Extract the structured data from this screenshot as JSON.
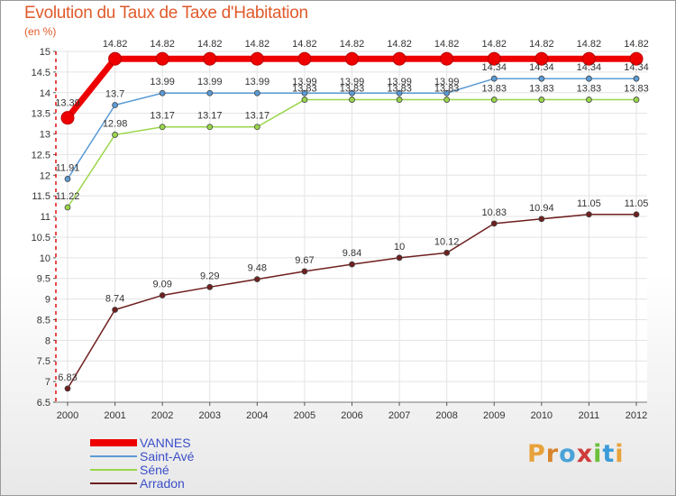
{
  "title": "Evolution du Taux de Taxe d'Habitation",
  "unit": "(en %)",
  "brand": {
    "letters": [
      "P",
      "r",
      "o",
      "x",
      "i",
      "t",
      "i"
    ],
    "colors": [
      "#e8a23a",
      "#d8842c",
      "#4aa3d8",
      "#cf3b3b",
      "#6cc03a",
      "#3a9bd8",
      "#e8a23a"
    ]
  },
  "chart_data": {
    "type": "line",
    "title": "Evolution du Taux de Taxe d'Habitation",
    "ylabel": "(en %)",
    "xlabel": "",
    "x": [
      2000,
      2001,
      2002,
      2003,
      2004,
      2005,
      2006,
      2007,
      2008,
      2009,
      2010,
      2011,
      2012
    ],
    "ylim": [
      6.5,
      15
    ],
    "yticks": [
      "6.5",
      "7",
      "7.5",
      "8",
      "8.5",
      "9",
      "9.5",
      "10",
      "10.5",
      "11",
      "11.5",
      "12",
      "12.5",
      "13",
      "13.5",
      "14",
      "14.5",
      "15"
    ],
    "series": [
      {
        "name": "VANNES",
        "color": "#ee0000",
        "width": 7,
        "marker": 7,
        "values": [
          13.39,
          14.82,
          14.82,
          14.82,
          14.82,
          14.82,
          14.82,
          14.82,
          14.82,
          14.82,
          14.82,
          14.82,
          14.82
        ],
        "labels": [
          "13.39",
          "14.82",
          "14.82",
          "14.82",
          "14.82",
          "14.82",
          "14.82",
          "14.82",
          "14.82",
          "14.82",
          "14.82",
          "14.82",
          "14.82"
        ]
      },
      {
        "name": "Saint-Avé",
        "color": "#5b9bd5",
        "width": 1.5,
        "marker": 3,
        "values": [
          11.91,
          13.7,
          13.99,
          13.99,
          13.99,
          13.99,
          13.99,
          13.99,
          13.99,
          14.34,
          14.34,
          14.34,
          14.34
        ],
        "labels": [
          "11.91",
          "13.7",
          "13.99",
          "13.99",
          "13.99",
          "13.99",
          "13.99",
          "13.99",
          "13.99",
          "14.34",
          "14.34",
          "14.34",
          "14.34"
        ]
      },
      {
        "name": "Séné",
        "color": "#99d64a",
        "width": 1.5,
        "marker": 3,
        "values": [
          11.22,
          12.98,
          13.17,
          13.17,
          13.17,
          13.83,
          13.83,
          13.83,
          13.83,
          13.83,
          13.83,
          13.83,
          13.83
        ],
        "labels": [
          "11.22",
          "12.98",
          "13.17",
          "13.17",
          "13.17",
          "13.83",
          "13.83",
          "13.83",
          "13.83",
          "13.83",
          "13.83",
          "13.83",
          "13.83"
        ]
      },
      {
        "name": "Arradon",
        "color": "#6e1f1f",
        "width": 1.5,
        "marker": 3,
        "values": [
          6.83,
          8.74,
          9.09,
          9.29,
          9.48,
          9.67,
          9.84,
          10,
          10.12,
          10.83,
          10.94,
          11.05,
          11.05
        ],
        "labels": [
          "6.83",
          "8.74",
          "9.09",
          "9.29",
          "9.48",
          "9.67",
          "9.84",
          "10",
          "10.12",
          "10.83",
          "10.94",
          "11.05",
          "11.05"
        ]
      }
    ],
    "grid": true,
    "legend": "bottom-left"
  }
}
